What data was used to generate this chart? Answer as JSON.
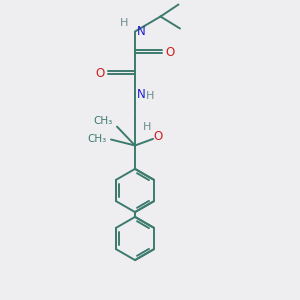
{
  "bg_color": "#eeeef0",
  "bond_color": "#3d7a6e",
  "N_color": "#2020cc",
  "O_color": "#cc2020",
  "H_color": "#6e8e8e",
  "line_width": 1.4,
  "font_size": 8.5,
  "fig_size": [
    3.0,
    3.0
  ],
  "dpi": 100,
  "xlim": [
    0,
    10
  ],
  "ylim": [
    0,
    10
  ]
}
